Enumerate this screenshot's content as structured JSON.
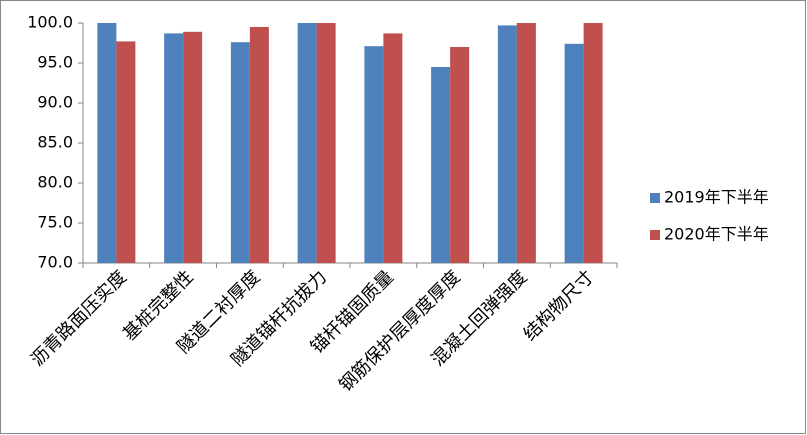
{
  "chart_data": {
    "type": "bar",
    "categories": [
      "沥青路面压实度",
      "基桩完整性",
      "隧道二衬厚度",
      "隧道锚杆抗拔力",
      "锚杆锚固质量",
      "钢筋保护层厚度厚度",
      "混凝土回弹强度",
      "结构物尺寸"
    ],
    "series": [
      {
        "name": "2019年下半年",
        "color": "#4f81bd",
        "values": [
          100,
          98.7,
          97.6,
          100,
          97.1,
          94.5,
          99.7,
          97.4
        ]
      },
      {
        "name": "2020年下半年",
        "color": "#c0504d",
        "values": [
          97.7,
          98.9,
          99.5,
          100,
          98.7,
          97.0,
          100,
          100
        ]
      }
    ],
    "ylim": [
      70,
      100
    ],
    "yticks": [
      {
        "value": 70,
        "label": "70.0"
      },
      {
        "value": 75,
        "label": "75.0"
      },
      {
        "value": 80,
        "label": "80.0"
      },
      {
        "value": 85,
        "label": "85.0"
      },
      {
        "value": 90,
        "label": "90.0"
      },
      {
        "value": 95,
        "label": "95.0"
      },
      {
        "value": 100,
        "label": "100.0"
      }
    ],
    "legend": "right"
  }
}
